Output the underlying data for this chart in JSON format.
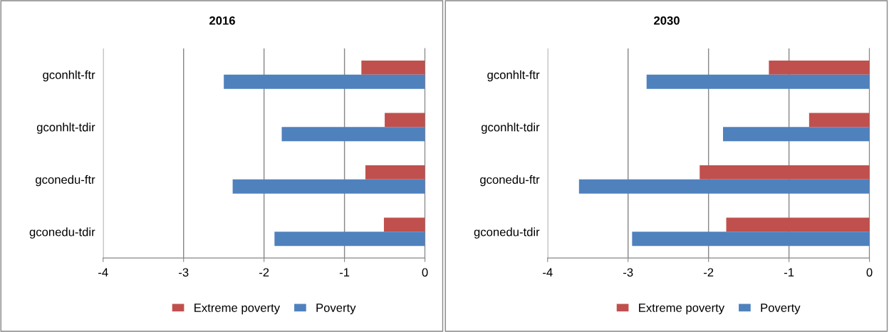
{
  "chart_data": [
    {
      "type": "bar",
      "orientation": "horizontal",
      "title": "2016",
      "categories": [
        "gconhlt-ftr",
        "gconhlt-tdir",
        "gconedu-ftr",
        "gconedu-tdir"
      ],
      "series": [
        {
          "name": "Extreme poverty",
          "color": "#c0504d",
          "values": [
            -0.79,
            -0.5,
            -0.74,
            -0.51
          ]
        },
        {
          "name": "Poverty",
          "color": "#4f81bd",
          "values": [
            -2.5,
            -1.78,
            -2.39,
            -1.87
          ]
        }
      ],
      "xlim": [
        -4,
        0
      ],
      "xticks": [
        -4,
        -3,
        -2,
        -1,
        0
      ],
      "grid": "x",
      "legend": "bottom"
    },
    {
      "type": "bar",
      "orientation": "horizontal",
      "title": "2030",
      "categories": [
        "gconhlt-ftr",
        "gconhlt-tdir",
        "gconedu-ftr",
        "gconedu-tdir"
      ],
      "series": [
        {
          "name": "Extreme poverty",
          "color": "#c0504d",
          "values": [
            -1.25,
            -0.75,
            -2.11,
            -1.78
          ]
        },
        {
          "name": "Poverty",
          "color": "#4f81bd",
          "values": [
            -2.77,
            -1.82,
            -3.61,
            -2.95
          ]
        }
      ],
      "xlim": [
        -4,
        0
      ],
      "xticks": [
        -4,
        -3,
        -2,
        -1,
        0
      ],
      "grid": "x",
      "legend": "bottom"
    }
  ]
}
